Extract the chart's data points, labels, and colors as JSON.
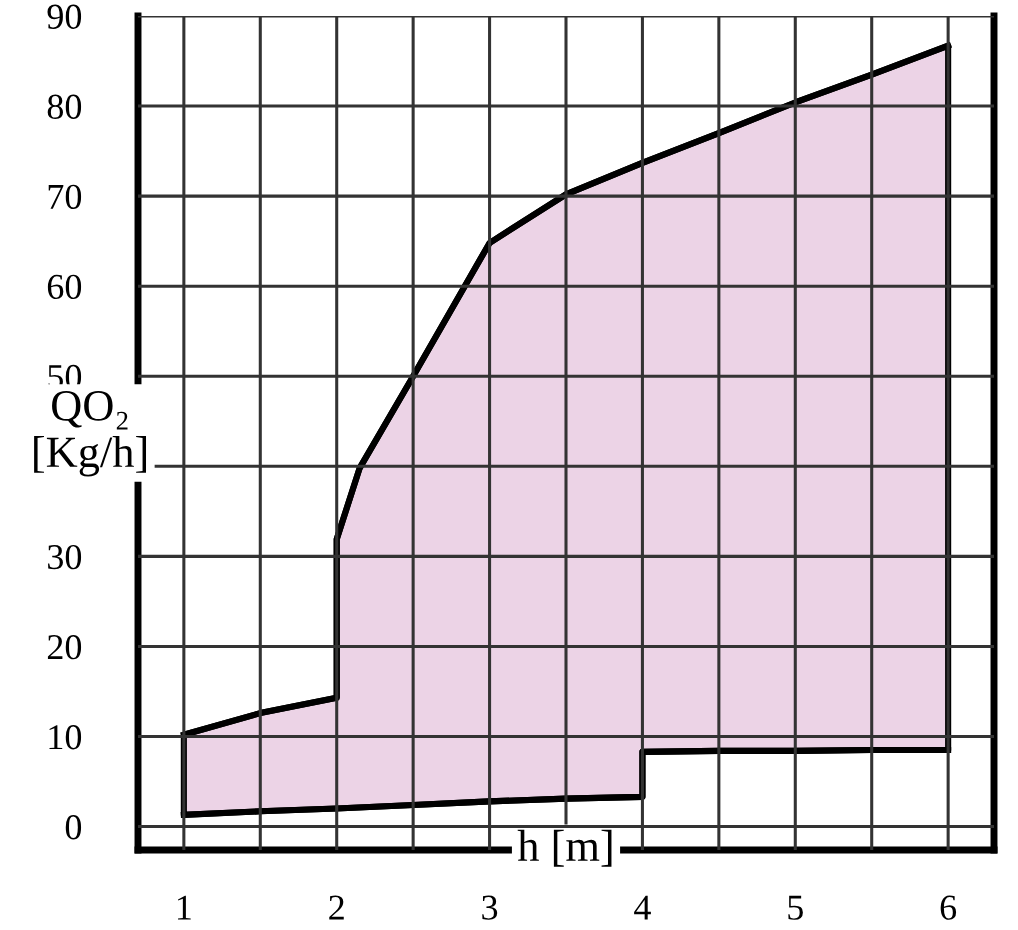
{
  "chart_data": {
    "type": "area",
    "xlabel": "h [m]",
    "ylabel": "QO₂\n[Kg/h]",
    "series": [
      {
        "type": "line",
        "color": "#000000",
        "x": [
          1,
          1.5,
          2,
          2.5,
          3,
          3.5,
          4,
          4,
          4.5,
          5,
          5.5,
          6
        ],
        "values": [
          1.3,
          1.7,
          2.0,
          2.4,
          2.8,
          3.1,
          3.3,
          8.3,
          8.4,
          8.4,
          8.5,
          8.5
        ]
      },
      {
        "color": "#ecd3e6",
        "x": [
          1,
          1.5,
          2,
          2,
          2.15,
          2.5,
          3,
          3.5,
          4,
          4.5,
          5,
          5.5,
          6
        ],
        "values": [
          10.2,
          12.6,
          14.3,
          31.9,
          39.8,
          50,
          64.8,
          70.2,
          73.7,
          77,
          80.4,
          83.5,
          86.7
        ]
      }
    ],
    "xlim": [
      0.7,
      6.3
    ],
    "xticks": [
      1,
      {
        "value": 1.5,
        "label": null
      },
      2,
      {
        "value": 2.5,
        "label": null
      },
      3,
      {
        "value": 3.5,
        "label": null
      },
      4,
      {
        "value": 4.5,
        "label": null
      },
      5,
      {
        "value": 5.5,
        "label": null
      },
      6
    ],
    "ylim": [
      -2.6,
      90
    ],
    "yticks": [
      0,
      10,
      20,
      30,
      {
        "value": 40,
        "label": null
      },
      50,
      60,
      70,
      80,
      90
    ],
    "grid": true
  }
}
